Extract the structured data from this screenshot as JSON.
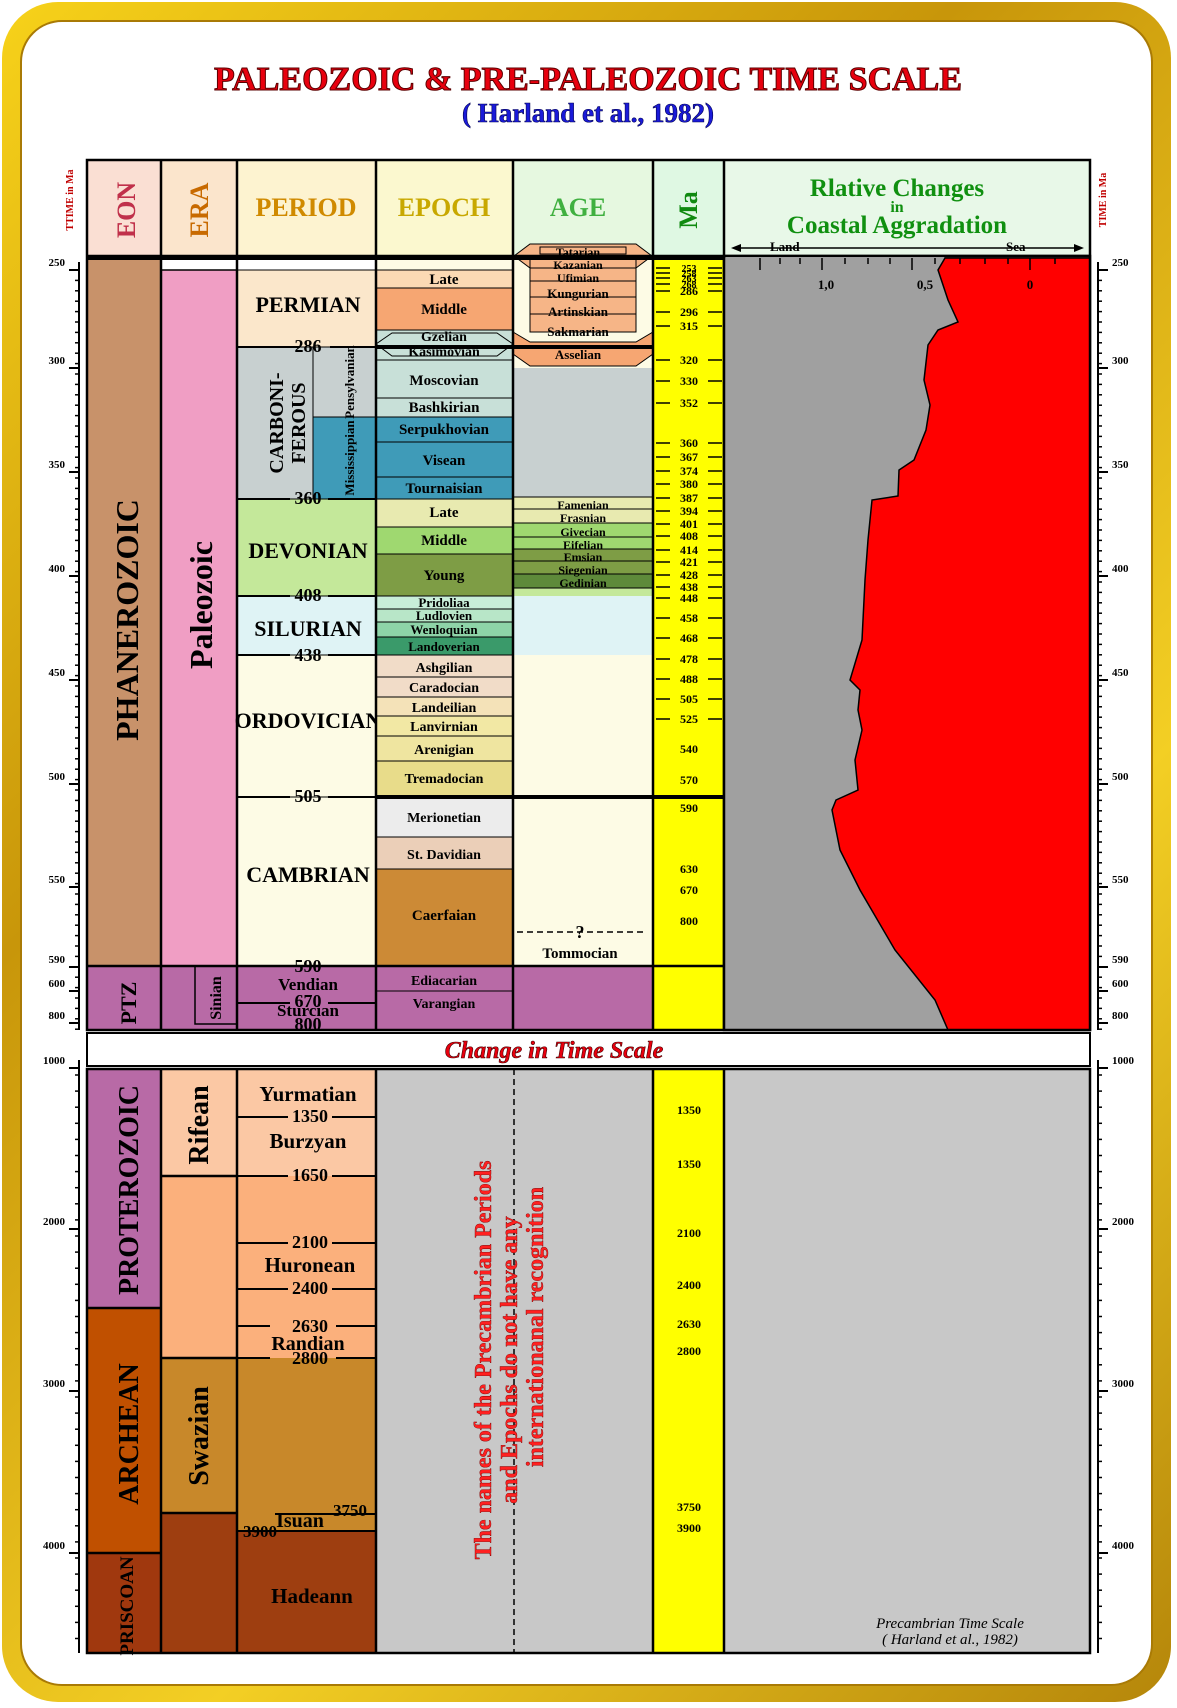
{
  "title": "PALEOZOIC & PRE-PALEOZOIC TIME SCALE",
  "subtitle": "( Harland et al., 1982)",
  "headers": {
    "eon": "EON",
    "era": "ERA",
    "period": "PERIOD",
    "epoch": "EPOCH",
    "age": "AGE",
    "ma": "Ma",
    "rel1": "Rlative Changes",
    "rel2": "in",
    "rel3": "Coastal Aggradation",
    "land": "Land",
    "sea": "Sea",
    "axis_left": "TTIME in Ma",
    "axis_right": "TIME in Ma"
  },
  "scale_ticks": {
    "t10": "1,0",
    "t05": "0,5",
    "t0": "0"
  },
  "left_axis": [
    "250",
    "300",
    "350",
    "400",
    "450",
    "500",
    "550",
    "590",
    "600",
    "800",
    "1000",
    "2000",
    "3000",
    "4000"
  ],
  "right_axis": [
    "250",
    "300",
    "350",
    "400",
    "450",
    "500",
    "550",
    "590",
    "600",
    "800",
    "1000",
    "2000",
    "3000",
    "4000"
  ],
  "eons": {
    "phanerozoic": "PHANEROZOIC",
    "ptz": "PTZ",
    "proterozoic": "PROTEROZOIC",
    "archean": "ARCHEAN",
    "priscoan": "PRISCOAN"
  },
  "eras": {
    "paleozoic": "Paleozoic",
    "sinian": "Sinian",
    "rifean": "Rifean",
    "swazian": "Swazian"
  },
  "periods": {
    "permian": "PERMIAN",
    "carbon1": "CARBONI-",
    "carbon2": "FEROUS",
    "pennsylvanian": "Pensylvanian",
    "mississippian": "Mississippian",
    "devonian": "DEVONIAN",
    "silurian": "SILURIAN",
    "ordovician": "ORDOVICIAN",
    "cambrian": "CAMBRIAN",
    "vendian": "Vendian",
    "sturcian": "Sturcian",
    "yurmatian": "Yurmatian",
    "burzyan": "Burzyan",
    "huronean": "Huronean",
    "randian": "Randian",
    "isuan": "Isuan",
    "hadeann": "Hadeann"
  },
  "period_ma": {
    "p286": "286",
    "p360": "360",
    "p408": "408",
    "p438": "438",
    "p505": "505",
    "p590": "590",
    "p670": "670",
    "p800": "800",
    "p1350": "1350",
    "p1650": "1650",
    "p2100": "2100",
    "p2400": "2400",
    "p2630": "2630",
    "p2800": "2800",
    "p3750": "3750",
    "p3900": "3900"
  },
  "epochs": {
    "late_p": "Late",
    "middle_p": "Middle",
    "gzelian": "Gzelian",
    "kasimovian": "Kasimovian",
    "moscovian": "Moscovian",
    "bashkirian": "Bashkirian",
    "serpukhovian": "Serpukhovian",
    "visean": "Visean",
    "tournaisian": "Tournaisian",
    "late_d": "Late",
    "middle_d": "Middle",
    "young_d": "Young",
    "pridoliaa": "Pridoliaa",
    "ludlovien": "Ludlovien",
    "wenloquian": "Wenloquian",
    "landoverian": "Landoverian",
    "ashgilian": "Ashgilian",
    "caradocian": "Caradocian",
    "landeilian": "Landeilian",
    "lanvirnian": "Lanvirnian",
    "arenigian": "Arenigian",
    "tremadocian": "Tremadocian",
    "merionetian": "Merionetian",
    "stdavidian": "St. Davidian",
    "caerfaian": "Caerfaian",
    "ediacarian": "Ediacarian",
    "varangian": "Varangian"
  },
  "ages": {
    "tatarian": "Tatarian",
    "kazanian": "Kazanian",
    "ufimian": "Ufimian",
    "kungurian": "Kungurian",
    "artinskian": "Artinskian",
    "sakmarian": "Sakmarian",
    "asselian": "Asselian",
    "famenian": "Famenian",
    "frasnian": "Frasnian",
    "givecian": "Givecian",
    "eifelian": "Eifelian",
    "emsian": "Emsian",
    "siegenian": "Siegenian",
    "gedinian": "Gedinian",
    "question": "?",
    "tommocian": "Tommocian"
  },
  "ma_values": [
    "253",
    "258",
    "263",
    "268",
    "286",
    "296",
    "315",
    "320",
    "330",
    "352",
    "360",
    "367",
    "374",
    "380",
    "387",
    "394",
    "401",
    "408",
    "414",
    "421",
    "428",
    "438",
    "448",
    "458",
    "468",
    "478",
    "488",
    "505",
    "525",
    "540",
    "570",
    "590",
    "630",
    "670",
    "800",
    "1350",
    "1350",
    "2100",
    "2400",
    "2630",
    "2800",
    "3750",
    "3900"
  ],
  "change_scale": "Change in Time Scale",
  "note1": "The names of the Precambrian Periods",
  "note2": "and Epochs do not have any",
  "note3": "internationanal  recognition",
  "footer1": "Precambrian Time Scale",
  "footer2": "( Harland et al., 1982)",
  "colors": {
    "title": "#e8000e",
    "subtitle": "#1a1ad9",
    "red": "#ff0000",
    "gray": "#a0a0a0",
    "yellow": "#ffff00",
    "phanerozoic": "#c8926a",
    "paleozoic": "#f09ec4",
    "ptz": "#b86aa6"
  }
}
